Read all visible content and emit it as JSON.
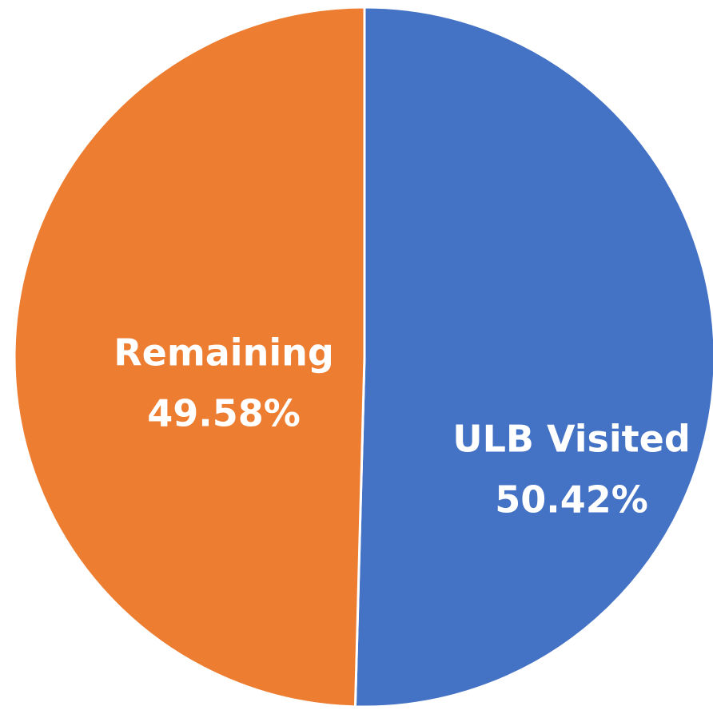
{
  "chart_data": {
    "type": "pie",
    "categories": [
      "ULB Visited",
      "Remaining"
    ],
    "values": [
      50.42,
      49.58
    ],
    "value_labels": [
      "50.42%",
      "49.58%"
    ],
    "colors": [
      "#4472c4",
      "#ed7d31"
    ]
  }
}
